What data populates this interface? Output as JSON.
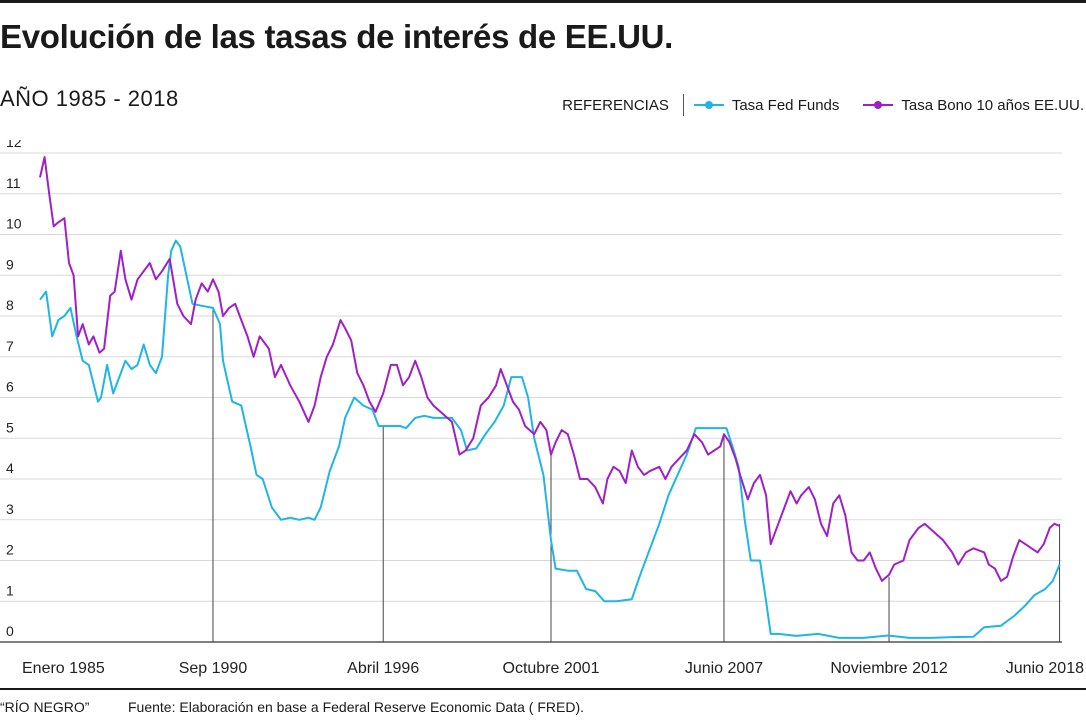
{
  "header": {
    "title": "Evolución de las tasas de interés de EE.UU.",
    "subtitle": "AÑO 1985 - 2018"
  },
  "legend": {
    "label": "REFERENCIAS",
    "items": [
      {
        "name": "Tasa Fed Funds",
        "color": "#1fb5e6"
      },
      {
        "name": "Tasa Bono 10 años EE.UU.",
        "color": "#a020c8"
      }
    ]
  },
  "footer": {
    "credit": "“RÍO NEGRO”",
    "source": "Fuente: Elaboración en base a Federal Reserve Economic Data ( FRED)."
  },
  "chart_data": {
    "type": "line",
    "x_range": [
      1985.0,
      2018.5
    ],
    "ylim": [
      0,
      12
    ],
    "y_ticks": [
      0,
      1,
      2,
      3,
      4,
      5,
      6,
      7,
      8,
      9,
      10,
      11,
      12
    ],
    "grid": true,
    "legend_position": "top-right",
    "x_labels": [
      {
        "label": "Enero 1985",
        "x": 1985.0
      },
      {
        "label": "Sep 1990",
        "x": 1990.67
      },
      {
        "label": "Abril 1996",
        "x": 1996.25
      },
      {
        "label": "Octubre 2001",
        "x": 2001.75
      },
      {
        "label": "Junio 2007",
        "x": 2007.42
      },
      {
        "label": "Noviembre 2012",
        "x": 2012.83
      },
      {
        "label": "Junio 2018",
        "x": 2018.42
      }
    ],
    "markers": [
      {
        "x": 1990.67,
        "y": 8.2
      },
      {
        "x": 1996.25,
        "y": 5.3
      },
      {
        "x": 2001.75,
        "y": 4.6
      },
      {
        "x": 2007.42,
        "y": 5.1
      },
      {
        "x": 2012.83,
        "y": 1.6
      },
      {
        "x": 2018.42,
        "y": 2.9
      }
    ],
    "series": [
      {
        "name": "Tasa Fed Funds",
        "color": "#1fb5e6",
        "points": [
          [
            1985.0,
            8.4
          ],
          [
            1985.2,
            8.6
          ],
          [
            1985.4,
            7.5
          ],
          [
            1985.6,
            7.9
          ],
          [
            1985.8,
            8.0
          ],
          [
            1986.0,
            8.2
          ],
          [
            1986.2,
            7.5
          ],
          [
            1986.4,
            6.9
          ],
          [
            1986.6,
            6.8
          ],
          [
            1986.9,
            5.9
          ],
          [
            1987.0,
            6.0
          ],
          [
            1987.2,
            6.8
          ],
          [
            1987.4,
            6.1
          ],
          [
            1987.6,
            6.5
          ],
          [
            1987.8,
            6.9
          ],
          [
            1988.0,
            6.7
          ],
          [
            1988.2,
            6.8
          ],
          [
            1988.4,
            7.3
          ],
          [
            1988.6,
            6.8
          ],
          [
            1988.8,
            6.6
          ],
          [
            1989.0,
            7.0
          ],
          [
            1989.2,
            9.0
          ],
          [
            1989.3,
            9.6
          ],
          [
            1989.45,
            9.85
          ],
          [
            1989.6,
            9.7
          ],
          [
            1989.8,
            9.0
          ],
          [
            1990.0,
            8.3
          ],
          [
            1990.3,
            8.25
          ],
          [
            1990.67,
            8.2
          ],
          [
            1990.9,
            7.8
          ],
          [
            1991.0,
            6.9
          ],
          [
            1991.3,
            5.9
          ],
          [
            1991.6,
            5.8
          ],
          [
            1991.9,
            4.8
          ],
          [
            1992.1,
            4.1
          ],
          [
            1992.3,
            4.0
          ],
          [
            1992.6,
            3.3
          ],
          [
            1992.9,
            3.0
          ],
          [
            1993.2,
            3.05
          ],
          [
            1993.5,
            3.0
          ],
          [
            1993.8,
            3.05
          ],
          [
            1994.0,
            3.0
          ],
          [
            1994.2,
            3.3
          ],
          [
            1994.5,
            4.2
          ],
          [
            1994.8,
            4.8
          ],
          [
            1995.0,
            5.5
          ],
          [
            1995.3,
            6.0
          ],
          [
            1995.6,
            5.8
          ],
          [
            1995.9,
            5.7
          ],
          [
            1996.1,
            5.3
          ],
          [
            1996.25,
            5.3
          ],
          [
            1996.5,
            5.3
          ],
          [
            1996.8,
            5.3
          ],
          [
            1997.0,
            5.25
          ],
          [
            1997.3,
            5.5
          ],
          [
            1997.6,
            5.55
          ],
          [
            1997.9,
            5.5
          ],
          [
            1998.2,
            5.5
          ],
          [
            1998.5,
            5.5
          ],
          [
            1998.8,
            5.2
          ],
          [
            1999.0,
            4.7
          ],
          [
            1999.3,
            4.75
          ],
          [
            1999.6,
            5.1
          ],
          [
            1999.9,
            5.4
          ],
          [
            2000.2,
            5.8
          ],
          [
            2000.45,
            6.5
          ],
          [
            2000.8,
            6.5
          ],
          [
            2001.0,
            6.0
          ],
          [
            2001.2,
            5.0
          ],
          [
            2001.5,
            4.1
          ],
          [
            2001.75,
            2.5
          ],
          [
            2001.9,
            1.8
          ],
          [
            2002.3,
            1.75
          ],
          [
            2002.6,
            1.75
          ],
          [
            2002.9,
            1.3
          ],
          [
            2003.2,
            1.25
          ],
          [
            2003.5,
            1.0
          ],
          [
            2003.9,
            1.0
          ],
          [
            2004.4,
            1.05
          ],
          [
            2004.7,
            1.7
          ],
          [
            2005.0,
            2.3
          ],
          [
            2005.3,
            2.9
          ],
          [
            2005.6,
            3.6
          ],
          [
            2005.9,
            4.1
          ],
          [
            2006.2,
            4.6
          ],
          [
            2006.5,
            5.25
          ],
          [
            2006.9,
            5.25
          ],
          [
            2007.2,
            5.25
          ],
          [
            2007.5,
            5.25
          ],
          [
            2007.7,
            4.8
          ],
          [
            2007.9,
            4.3
          ],
          [
            2008.1,
            3.0
          ],
          [
            2008.3,
            2.0
          ],
          [
            2008.6,
            2.0
          ],
          [
            2008.8,
            1.0
          ],
          [
            2008.95,
            0.2
          ],
          [
            2009.2,
            0.2
          ],
          [
            2009.8,
            0.15
          ],
          [
            2010.5,
            0.2
          ],
          [
            2011.2,
            0.1
          ],
          [
            2012.0,
            0.1
          ],
          [
            2012.8,
            0.16
          ],
          [
            2013.5,
            0.1
          ],
          [
            2014.2,
            0.1
          ],
          [
            2014.9,
            0.12
          ],
          [
            2015.6,
            0.13
          ],
          [
            2015.95,
            0.36
          ],
          [
            2016.5,
            0.4
          ],
          [
            2016.95,
            0.65
          ],
          [
            2017.3,
            0.9
          ],
          [
            2017.6,
            1.15
          ],
          [
            2017.95,
            1.3
          ],
          [
            2018.2,
            1.5
          ],
          [
            2018.42,
            1.9
          ]
        ]
      },
      {
        "name": "Tasa Bono 10 años EE.UU.",
        "color": "#a020c8",
        "points": [
          [
            1985.0,
            11.4
          ],
          [
            1985.15,
            11.9
          ],
          [
            1985.3,
            11.0
          ],
          [
            1985.45,
            10.2
          ],
          [
            1985.6,
            10.3
          ],
          [
            1985.8,
            10.4
          ],
          [
            1985.95,
            9.3
          ],
          [
            1986.1,
            9.0
          ],
          [
            1986.25,
            7.5
          ],
          [
            1986.4,
            7.8
          ],
          [
            1986.6,
            7.3
          ],
          [
            1986.75,
            7.5
          ],
          [
            1986.95,
            7.1
          ],
          [
            1987.1,
            7.2
          ],
          [
            1987.3,
            8.5
          ],
          [
            1987.45,
            8.6
          ],
          [
            1987.65,
            9.6
          ],
          [
            1987.8,
            8.9
          ],
          [
            1988.0,
            8.4
          ],
          [
            1988.2,
            8.9
          ],
          [
            1988.4,
            9.1
          ],
          [
            1988.6,
            9.3
          ],
          [
            1988.8,
            8.9
          ],
          [
            1989.0,
            9.1
          ],
          [
            1989.25,
            9.4
          ],
          [
            1989.5,
            8.3
          ],
          [
            1989.7,
            8.0
          ],
          [
            1989.95,
            7.8
          ],
          [
            1990.1,
            8.4
          ],
          [
            1990.3,
            8.8
          ],
          [
            1990.5,
            8.6
          ],
          [
            1990.67,
            8.9
          ],
          [
            1990.85,
            8.6
          ],
          [
            1991.0,
            8.0
          ],
          [
            1991.2,
            8.2
          ],
          [
            1991.4,
            8.3
          ],
          [
            1991.6,
            7.9
          ],
          [
            1991.8,
            7.5
          ],
          [
            1992.0,
            7.0
          ],
          [
            1992.2,
            7.5
          ],
          [
            1992.5,
            7.2
          ],
          [
            1992.7,
            6.5
          ],
          [
            1992.9,
            6.8
          ],
          [
            1993.2,
            6.3
          ],
          [
            1993.5,
            5.9
          ],
          [
            1993.8,
            5.4
          ],
          [
            1994.0,
            5.8
          ],
          [
            1994.2,
            6.5
          ],
          [
            1994.4,
            7.0
          ],
          [
            1994.6,
            7.3
          ],
          [
            1994.85,
            7.9
          ],
          [
            1995.0,
            7.7
          ],
          [
            1995.2,
            7.4
          ],
          [
            1995.4,
            6.6
          ],
          [
            1995.6,
            6.3
          ],
          [
            1995.8,
            5.9
          ],
          [
            1996.0,
            5.65
          ],
          [
            1996.25,
            6.1
          ],
          [
            1996.5,
            6.8
          ],
          [
            1996.7,
            6.8
          ],
          [
            1996.9,
            6.3
          ],
          [
            1997.1,
            6.5
          ],
          [
            1997.3,
            6.9
          ],
          [
            1997.5,
            6.5
          ],
          [
            1997.7,
            6.0
          ],
          [
            1997.9,
            5.8
          ],
          [
            1998.2,
            5.6
          ],
          [
            1998.5,
            5.4
          ],
          [
            1998.75,
            4.6
          ],
          [
            1998.95,
            4.7
          ],
          [
            1999.2,
            5.0
          ],
          [
            1999.45,
            5.8
          ],
          [
            1999.7,
            6.0
          ],
          [
            1999.95,
            6.3
          ],
          [
            2000.1,
            6.7
          ],
          [
            2000.3,
            6.3
          ],
          [
            2000.5,
            5.9
          ],
          [
            2000.7,
            5.7
          ],
          [
            2000.9,
            5.3
          ],
          [
            2001.2,
            5.1
          ],
          [
            2001.4,
            5.4
          ],
          [
            2001.6,
            5.2
          ],
          [
            2001.75,
            4.6
          ],
          [
            2001.9,
            4.9
          ],
          [
            2002.1,
            5.2
          ],
          [
            2002.3,
            5.1
          ],
          [
            2002.5,
            4.6
          ],
          [
            2002.7,
            4.0
          ],
          [
            2002.95,
            4.0
          ],
          [
            2003.2,
            3.8
          ],
          [
            2003.45,
            3.4
          ],
          [
            2003.6,
            4.0
          ],
          [
            2003.8,
            4.3
          ],
          [
            2004.0,
            4.2
          ],
          [
            2004.2,
            3.9
          ],
          [
            2004.4,
            4.7
          ],
          [
            2004.6,
            4.3
          ],
          [
            2004.8,
            4.1
          ],
          [
            2005.0,
            4.2
          ],
          [
            2005.3,
            4.3
          ],
          [
            2005.5,
            4.0
          ],
          [
            2005.7,
            4.3
          ],
          [
            2005.95,
            4.5
          ],
          [
            2006.2,
            4.7
          ],
          [
            2006.45,
            5.1
          ],
          [
            2006.7,
            4.9
          ],
          [
            2006.9,
            4.6
          ],
          [
            2007.1,
            4.7
          ],
          [
            2007.3,
            4.8
          ],
          [
            2007.42,
            5.1
          ],
          [
            2007.6,
            4.9
          ],
          [
            2007.8,
            4.5
          ],
          [
            2007.95,
            4.1
          ],
          [
            2008.2,
            3.5
          ],
          [
            2008.4,
            3.9
          ],
          [
            2008.6,
            4.1
          ],
          [
            2008.8,
            3.6
          ],
          [
            2008.95,
            2.4
          ],
          [
            2009.2,
            2.9
          ],
          [
            2009.4,
            3.3
          ],
          [
            2009.6,
            3.7
          ],
          [
            2009.8,
            3.4
          ],
          [
            2009.95,
            3.6
          ],
          [
            2010.2,
            3.8
          ],
          [
            2010.4,
            3.5
          ],
          [
            2010.6,
            2.9
          ],
          [
            2010.8,
            2.6
          ],
          [
            2011.0,
            3.4
          ],
          [
            2011.2,
            3.6
          ],
          [
            2011.4,
            3.1
          ],
          [
            2011.6,
            2.2
          ],
          [
            2011.8,
            2.0
          ],
          [
            2012.0,
            2.0
          ],
          [
            2012.2,
            2.2
          ],
          [
            2012.4,
            1.8
          ],
          [
            2012.6,
            1.5
          ],
          [
            2012.83,
            1.65
          ],
          [
            2013.0,
            1.9
          ],
          [
            2013.3,
            2.0
          ],
          [
            2013.5,
            2.5
          ],
          [
            2013.8,
            2.8
          ],
          [
            2014.0,
            2.9
          ],
          [
            2014.3,
            2.7
          ],
          [
            2014.6,
            2.5
          ],
          [
            2014.9,
            2.2
          ],
          [
            2015.1,
            1.9
          ],
          [
            2015.35,
            2.2
          ],
          [
            2015.6,
            2.3
          ],
          [
            2015.95,
            2.2
          ],
          [
            2016.1,
            1.9
          ],
          [
            2016.3,
            1.8
          ],
          [
            2016.5,
            1.5
          ],
          [
            2016.7,
            1.6
          ],
          [
            2016.9,
            2.1
          ],
          [
            2017.1,
            2.5
          ],
          [
            2017.3,
            2.4
          ],
          [
            2017.5,
            2.3
          ],
          [
            2017.7,
            2.2
          ],
          [
            2017.9,
            2.4
          ],
          [
            2018.1,
            2.8
          ],
          [
            2018.25,
            2.9
          ],
          [
            2018.42,
            2.85
          ]
        ]
      }
    ]
  }
}
